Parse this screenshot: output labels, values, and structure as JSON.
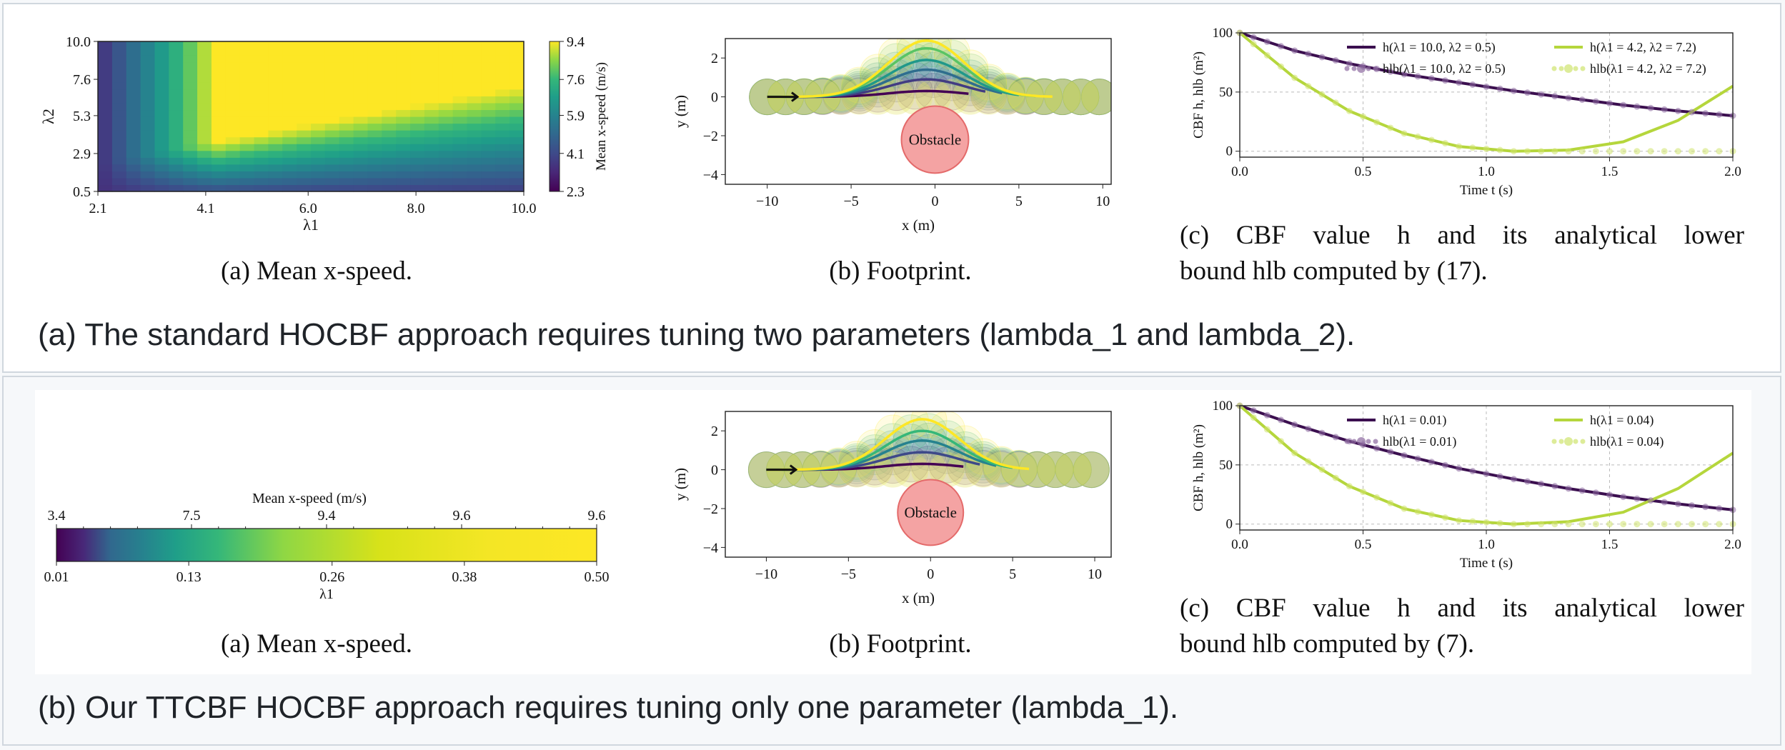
{
  "row_a": {
    "caption": "(a) The standard HOCBF approach requires tuning two parameters (lambda_1 and lambda_2).",
    "sub_a": {
      "caption": "(a) Mean x-speed.",
      "heatmap": {
        "type": "heatmap",
        "xlabel": "λ1",
        "ylabel": "λ2",
        "x_ticks": [
          "2.1",
          "4.1",
          "6.0",
          "8.0",
          "10.0"
        ],
        "y_ticks": [
          "10.0",
          "7.6",
          "5.3",
          "2.9",
          "0.5"
        ],
        "xlim": [
          2.1,
          10.0
        ],
        "ylim": [
          0.5,
          10.0
        ],
        "colorbar_label": "Mean x-speed (m/s)",
        "colorbar_ticks": [
          "9.4",
          "7.6",
          "5.9",
          "4.1",
          "2.3"
        ],
        "crange": [
          2.3,
          9.4
        ]
      }
    },
    "sub_b": {
      "caption": "(b) Footprint.",
      "xlabel": "x (m)",
      "ylabel": "y (m)",
      "x_ticks": [
        "−10",
        "−5",
        "0",
        "5",
        "10"
      ],
      "y_ticks": [
        "2",
        "0",
        "−2",
        "−4"
      ],
      "xlim": [
        -12.5,
        10.5
      ],
      "ylim": [
        -4.5,
        3
      ],
      "obstacle_label": "Obstacle",
      "obstacle": {
        "x": 0,
        "y": -2.2,
        "r": 2.0
      },
      "traj_peaks": [
        0.3,
        0.9,
        1.4,
        1.9,
        2.5,
        2.9
      ]
    },
    "sub_c": {
      "caption_line1": "(c) CBF value h and its analytical lower",
      "caption_line2": "bound hlb computed by (17).",
      "xlabel": "Time t (s)",
      "ylabel": "CBF h, hlb (m²)",
      "x_ticks": [
        "0.0",
        "0.5",
        "1.0",
        "1.5",
        "2.0"
      ],
      "y_ticks": [
        "100",
        "50",
        "0"
      ],
      "legend": [
        "h(λ1 = 10.0, λ2 = 0.5)",
        "h(λ1 = 4.2, λ2 = 7.2)",
        "hlb(λ1 = 10.0, λ2 = 0.5)",
        "hlb(λ1 = 4.2, λ2 = 7.2)"
      ],
      "series": [
        {
          "name": "h(λ1=10.0, λ2=0.5)",
          "color": "#3b0f4f",
          "values": [
            100,
            85,
            74,
            65,
            58,
            51,
            45,
            39,
            34,
            30
          ]
        },
        {
          "name": "h(λ1=4.2, λ2=7.2)",
          "color": "#b5d63c",
          "values": [
            100,
            62,
            34,
            15,
            4,
            0,
            1,
            8,
            26,
            55
          ]
        },
        {
          "name": "hlb(λ1=10.0, λ2=0.5)",
          "color": "#8d6aa0",
          "values": [
            100,
            85,
            74,
            65,
            58,
            51,
            45,
            39,
            34,
            30
          ]
        },
        {
          "name": "hlb(λ1=4.2, λ2=7.2)",
          "color": "#cfe46e",
          "values": [
            100,
            62,
            34,
            15,
            4,
            0,
            0,
            0,
            0,
            0
          ]
        }
      ]
    }
  },
  "row_b": {
    "caption": "(b) Our TTCBF HOCBF approach requires tuning only one parameter (lambda_1).",
    "sub_a": {
      "caption": "(a) Mean x-speed.",
      "colorbar": {
        "type": "heatmap",
        "title": "Mean x-speed (m/s)",
        "top_ticks": [
          "3.4",
          "7.5",
          "9.4",
          "9.6",
          "9.6"
        ],
        "bottom_ticks": [
          "0.01",
          "0.13",
          "0.26",
          "0.38",
          "0.50"
        ],
        "xlabel": "λ1",
        "crange": [
          2.3,
          9.6
        ]
      }
    },
    "sub_b": {
      "caption": "(b) Footprint.",
      "xlabel": "x (m)",
      "ylabel": "y (m)",
      "x_ticks": [
        "−10",
        "−5",
        "0",
        "5",
        "10"
      ],
      "y_ticks": [
        "2",
        "0",
        "−2",
        "−4"
      ],
      "xlim": [
        -12.5,
        11
      ],
      "ylim": [
        -4.5,
        3
      ],
      "obstacle_label": "Obstacle",
      "obstacle": {
        "x": 0,
        "y": -2.2,
        "r": 2.0
      },
      "traj_peaks": [
        0.3,
        0.9,
        1.5,
        2.0,
        2.6
      ]
    },
    "sub_c": {
      "caption_line1": "(c) CBF value h and its analytical lower",
      "caption_line2": "bound hlb computed by (7).",
      "xlabel": "Time t (s)",
      "ylabel": "CBF h, hlb (m²)",
      "x_ticks": [
        "0.0",
        "0.5",
        "1.0",
        "1.5",
        "2.0"
      ],
      "y_ticks": [
        "100",
        "50",
        "0"
      ],
      "legend": [
        "h(λ1 = 0.01)",
        "h(λ1 = 0.04)",
        "hlb(λ1 = 0.01)",
        "hlb(λ1 = 0.04)"
      ],
      "series": [
        {
          "name": "h(λ1=0.01)",
          "color": "#3b0f4f",
          "values": [
            100,
            84,
            70,
            58,
            47,
            38,
            30,
            23,
            17,
            12
          ]
        },
        {
          "name": "h(λ1=0.04)",
          "color": "#b5d63c",
          "values": [
            100,
            60,
            32,
            13,
            3,
            0,
            2,
            10,
            30,
            60
          ]
        },
        {
          "name": "hlb(λ1=0.01)",
          "color": "#8d6aa0",
          "values": [
            100,
            84,
            70,
            58,
            47,
            38,
            30,
            23,
            17,
            12
          ]
        },
        {
          "name": "hlb(λ1=0.04)",
          "color": "#cfe46e",
          "values": [
            100,
            60,
            32,
            13,
            3,
            0,
            0,
            0,
            0,
            0
          ]
        }
      ]
    }
  }
}
